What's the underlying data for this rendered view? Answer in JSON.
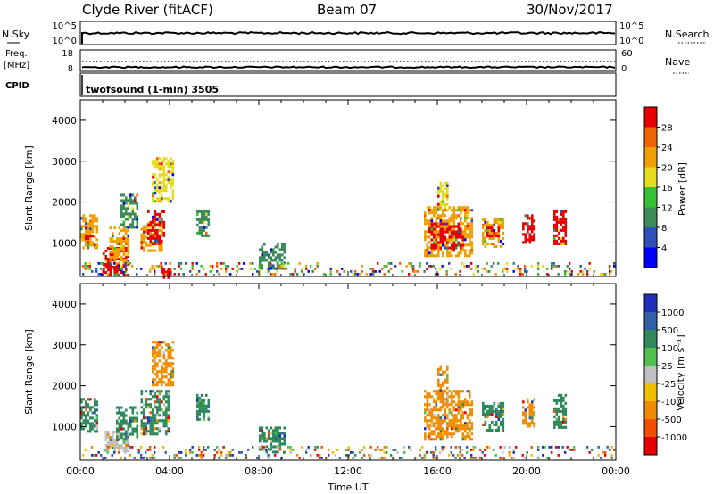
{
  "header": {
    "station": "Clyde River (fitACF)",
    "beam": "Beam 07",
    "date": "30/Nov/2017"
  },
  "strips": {
    "nsky_label": "N.Sky",
    "nsky_ticks": [
      "10^5",
      "10^0"
    ],
    "nsearch_label": "N.Search",
    "nsearch_ticks": [
      "10^5",
      "10^0"
    ],
    "freq_label_1": "Freq.",
    "freq_label_2": "[MHz]",
    "freq_ticks": [
      "18",
      "8"
    ],
    "nave_label": "Nave",
    "nave_ticks": [
      "60",
      "0"
    ],
    "cpid_label": "CPID",
    "cpid_text": "twofsound (1-min) 3505"
  },
  "axes": {
    "ylabel": "Slant Range [km]",
    "xlabel": "Time UT",
    "xticks": [
      "00:00",
      "04:00",
      "08:00",
      "12:00",
      "16:00",
      "20:00",
      "00:00"
    ],
    "yticks": [
      "1000",
      "2000",
      "3000",
      "4000"
    ]
  },
  "power_scale": {
    "label": "Power [dB]",
    "ticks": [
      "4",
      "8",
      "12",
      "16",
      "20",
      "24",
      "28"
    ],
    "colors": [
      "#0000ff",
      "#2f50b8",
      "#3c8c5a",
      "#34c234",
      "#e6dc1e",
      "#f0a000",
      "#f06400",
      "#e60000"
    ]
  },
  "velocity_scale": {
    "label": "Velocity [m s⁻¹]",
    "ticks": [
      "1000",
      "500",
      "100",
      "25",
      "-25",
      "-100",
      "-500",
      "-1000"
    ],
    "colors": [
      "#2030b8",
      "#3060a8",
      "#2e8a5a",
      "#50c050",
      "#c0c0c0",
      "#f0c000",
      "#f08c00",
      "#f05000",
      "#e60000"
    ]
  },
  "chart_data": [
    {
      "type": "heatmap",
      "panel": "power",
      "xlim": [
        0,
        24
      ],
      "ylim": [
        180,
        4500
      ],
      "xlabel": "Time UT",
      "ylabel": "Slant Range [km]",
      "legend": "right colorbar",
      "regions": [
        {
          "t0": 0.0,
          "t1": 0.8,
          "r0": 900,
          "r1": 1700,
          "value": 20
        },
        {
          "t0": 0.2,
          "t1": 0.6,
          "r0": 1100,
          "r1": 1400,
          "value": 28
        },
        {
          "t0": 1.0,
          "t1": 2.2,
          "r0": 180,
          "r1": 900,
          "value": 28
        },
        {
          "t0": 1.3,
          "t1": 2.2,
          "r0": 500,
          "r1": 1400,
          "value": 20
        },
        {
          "t0": 1.8,
          "t1": 2.6,
          "r0": 1400,
          "r1": 2200,
          "value": 8
        },
        {
          "t0": 2.7,
          "t1": 3.7,
          "r0": 800,
          "r1": 1500,
          "value": 20
        },
        {
          "t0": 3.0,
          "t1": 3.8,
          "r0": 1000,
          "r1": 1800,
          "value": 28
        },
        {
          "t0": 3.2,
          "t1": 4.2,
          "r0": 2000,
          "r1": 3100,
          "value": 16
        },
        {
          "t0": 3.6,
          "t1": 4.1,
          "r0": 180,
          "r1": 450,
          "value": 28
        },
        {
          "t0": 5.2,
          "t1": 5.8,
          "r0": 1200,
          "r1": 1800,
          "value": 8
        },
        {
          "t0": 8.0,
          "t1": 9.2,
          "r0": 400,
          "r1": 1000,
          "value": 8
        },
        {
          "t0": 15.4,
          "t1": 17.6,
          "r0": 700,
          "r1": 1900,
          "value": 20
        },
        {
          "t0": 15.7,
          "t1": 17.2,
          "r0": 900,
          "r1": 1500,
          "value": 28
        },
        {
          "t0": 16.0,
          "t1": 16.5,
          "r0": 1800,
          "r1": 2500,
          "value": 16
        },
        {
          "t0": 18.0,
          "t1": 19.0,
          "r0": 900,
          "r1": 1600,
          "value": 20
        },
        {
          "t0": 18.2,
          "t1": 18.8,
          "r0": 1150,
          "r1": 1400,
          "value": 28
        },
        {
          "t0": 19.8,
          "t1": 20.4,
          "r0": 1000,
          "r1": 1700,
          "value": 28
        },
        {
          "t0": 21.2,
          "t1": 21.8,
          "r0": 1000,
          "r1": 1800,
          "value": 28
        }
      ]
    },
    {
      "type": "heatmap",
      "panel": "velocity",
      "xlim": [
        0,
        24
      ],
      "ylim": [
        180,
        4500
      ],
      "xlabel": "Time UT",
      "ylabel": "Slant Range [km]",
      "legend": "right colorbar",
      "regions": [
        {
          "t0": 0.0,
          "t1": 0.8,
          "r0": 900,
          "r1": 1700,
          "value": 100
        },
        {
          "t0": 1.1,
          "t1": 2.2,
          "r0": 400,
          "r1": 900,
          "value": 0
        },
        {
          "t0": 1.6,
          "t1": 2.6,
          "r0": 700,
          "r1": 1500,
          "value": 100
        },
        {
          "t0": 2.7,
          "t1": 4.0,
          "r0": 800,
          "r1": 1900,
          "value": 100
        },
        {
          "t0": 3.2,
          "t1": 4.2,
          "r0": 2000,
          "r1": 3100,
          "value": -300
        },
        {
          "t0": 5.2,
          "t1": 5.8,
          "r0": 1200,
          "r1": 1800,
          "value": 100
        },
        {
          "t0": 8.0,
          "t1": 9.2,
          "r0": 400,
          "r1": 1000,
          "value": 100
        },
        {
          "t0": 15.4,
          "t1": 17.6,
          "r0": 700,
          "r1": 1900,
          "value": -400
        },
        {
          "t0": 16.0,
          "t1": 16.5,
          "r0": 1800,
          "r1": 2500,
          "value": -200
        },
        {
          "t0": 18.0,
          "t1": 19.0,
          "r0": 900,
          "r1": 1600,
          "value": 100
        },
        {
          "t0": 19.8,
          "t1": 20.4,
          "r0": 1000,
          "r1": 1700,
          "value": -300
        },
        {
          "t0": 21.2,
          "t1": 21.8,
          "r0": 1000,
          "r1": 1800,
          "value": 100
        }
      ]
    }
  ]
}
